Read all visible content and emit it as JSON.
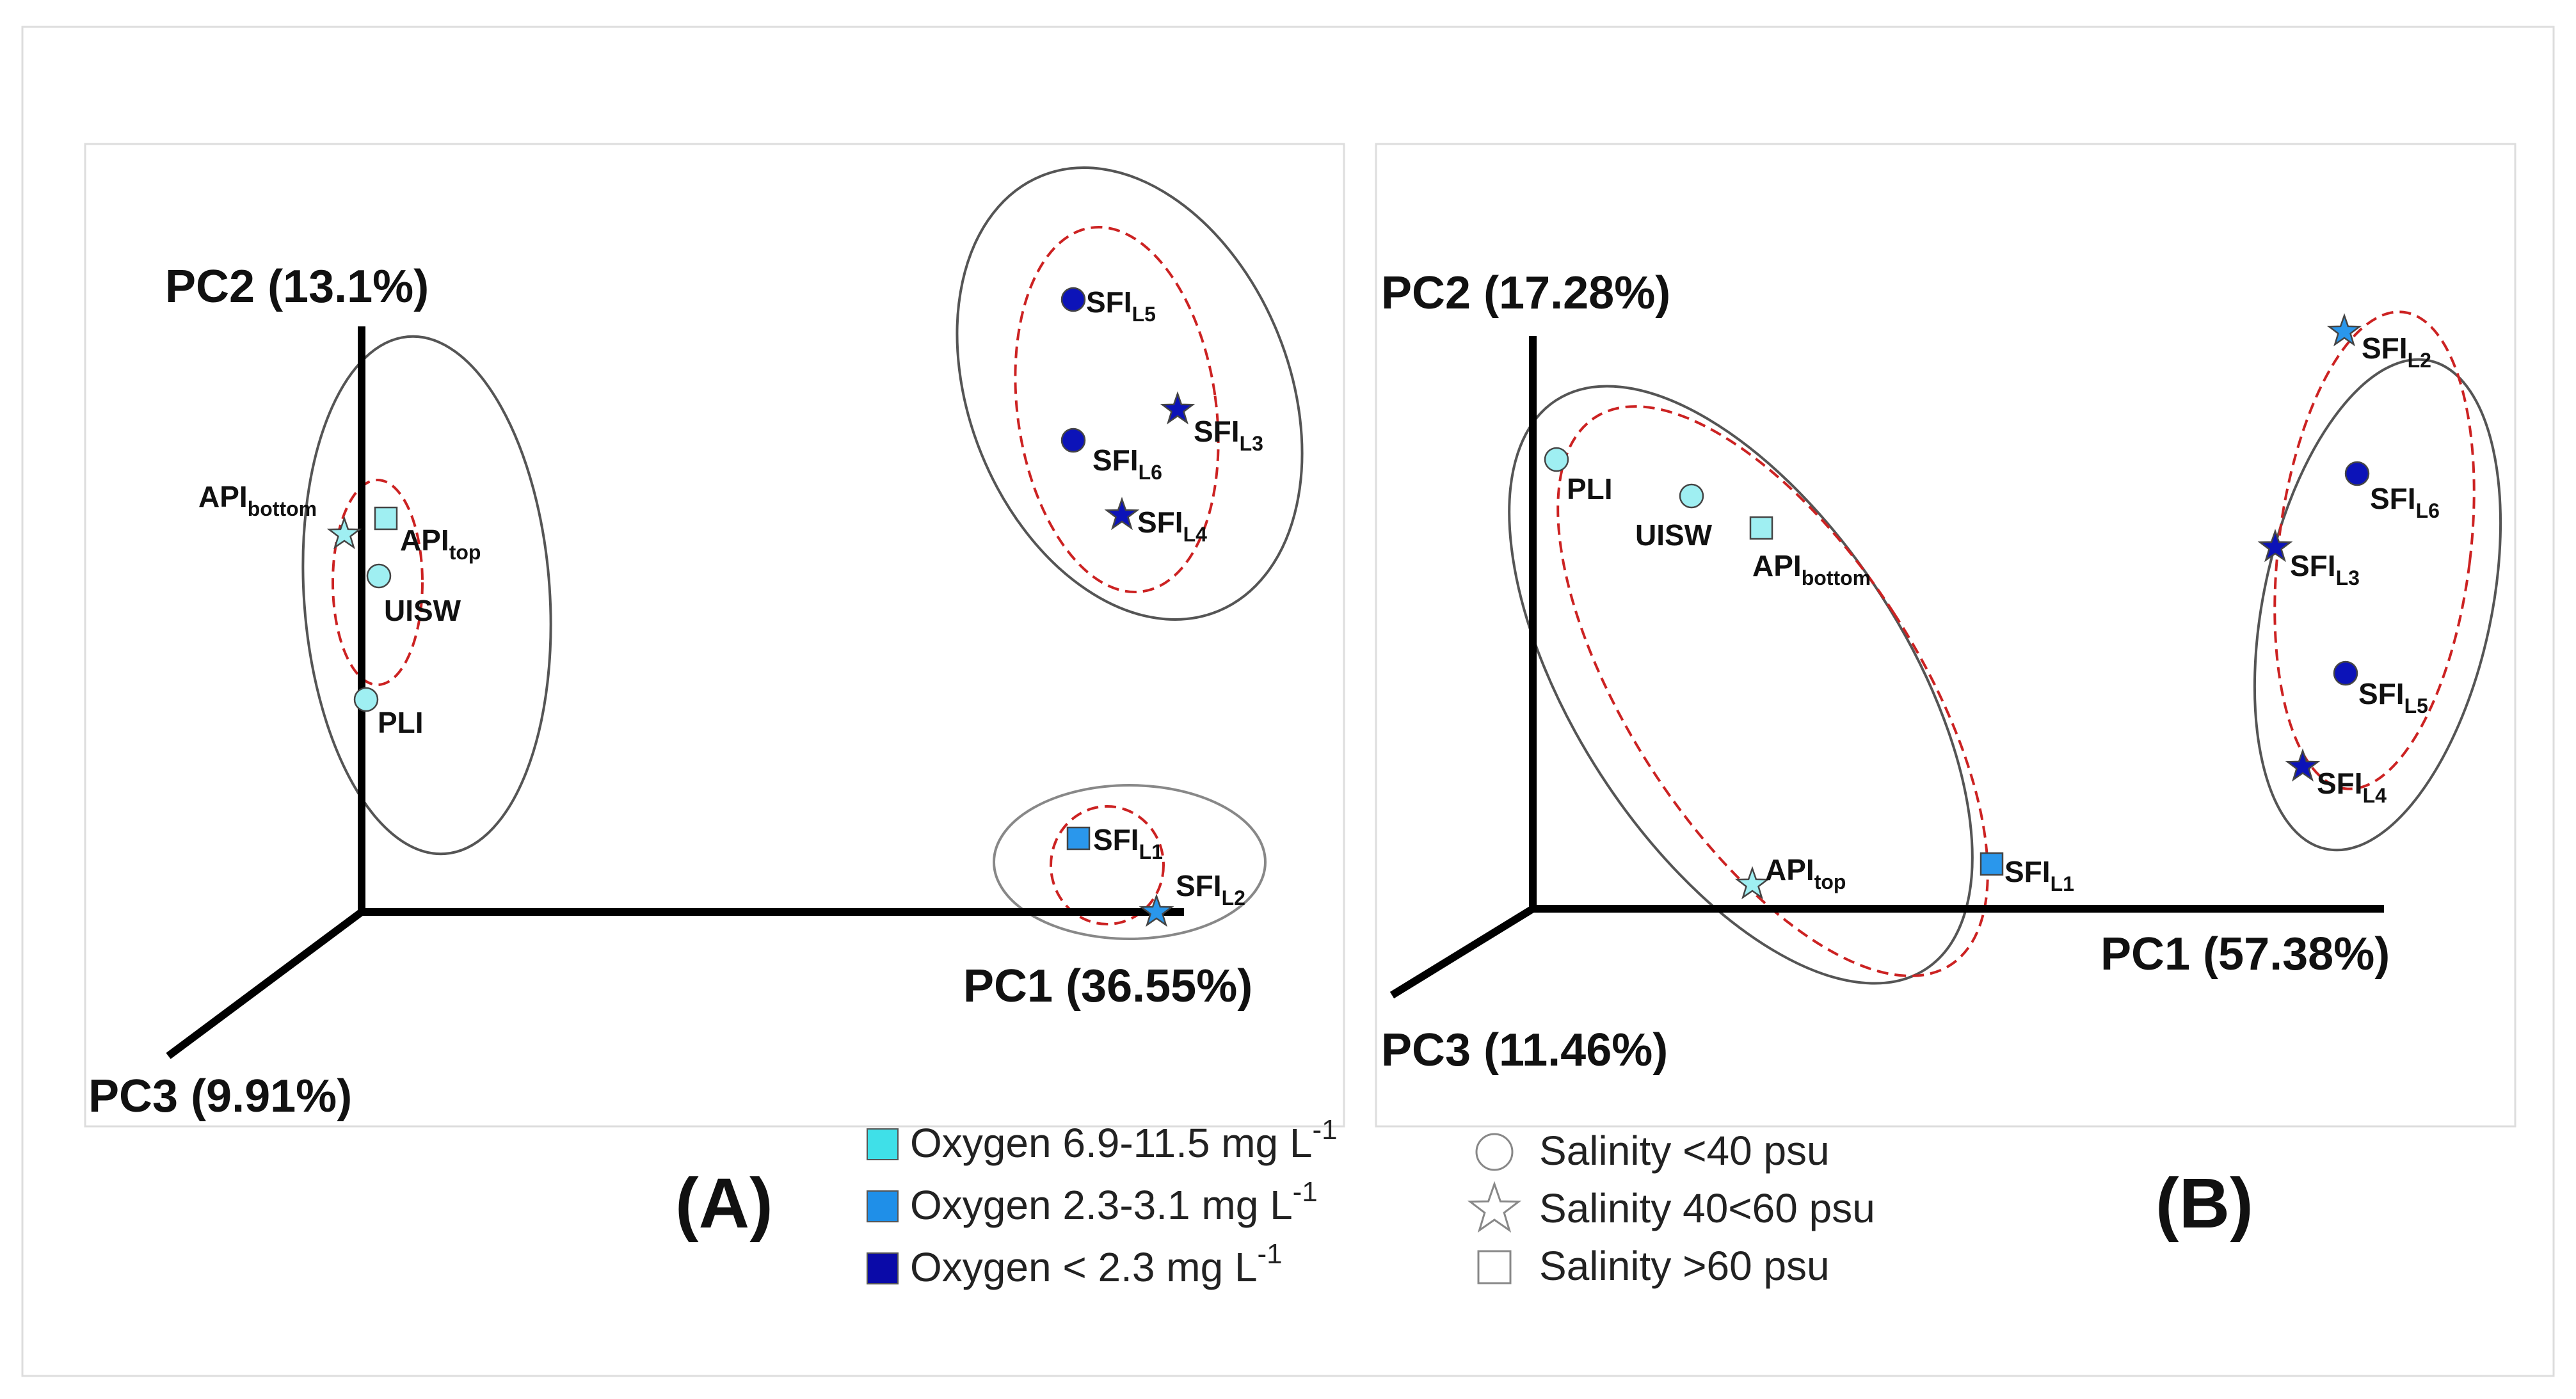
{
  "chart_data": [
    {
      "type": "scatter",
      "panel": "(A)",
      "axes": {
        "x": "PC1 (36.55%)",
        "y": "PC2 (13.1%)",
        "z": "PC3 (9.91%)"
      },
      "points": [
        {
          "id": "a-api-bottom",
          "label": "API",
          "sub": "bottom",
          "oxygen": "high",
          "salinity": "mid",
          "shape": "star"
        },
        {
          "id": "a-api-top",
          "label": "API",
          "sub": "top",
          "oxygen": "high",
          "salinity": "high",
          "shape": "square"
        },
        {
          "id": "a-uisw",
          "label": "UISW",
          "sub": "",
          "oxygen": "high",
          "salinity": "low",
          "shape": "circle"
        },
        {
          "id": "a-pli",
          "label": "PLI",
          "sub": "",
          "oxygen": "high",
          "salinity": "low",
          "shape": "circle"
        },
        {
          "id": "a-sfi-l5",
          "label": "SFI",
          "sub": "L5",
          "oxygen": "low",
          "salinity": "low",
          "shape": "circle"
        },
        {
          "id": "a-sfi-l3",
          "label": "SFI",
          "sub": "L3",
          "oxygen": "low",
          "salinity": "mid",
          "shape": "star"
        },
        {
          "id": "a-sfi-l6",
          "label": "SFI",
          "sub": "L6",
          "oxygen": "low",
          "salinity": "low",
          "shape": "circle"
        },
        {
          "id": "a-sfi-l4",
          "label": "SFI",
          "sub": "L4",
          "oxygen": "low",
          "salinity": "mid",
          "shape": "star"
        },
        {
          "id": "a-sfi-l1",
          "label": "SFI",
          "sub": "L1",
          "oxygen": "mid",
          "salinity": "high",
          "shape": "square"
        },
        {
          "id": "a-sfi-l2",
          "label": "SFI",
          "sub": "L2",
          "oxygen": "mid",
          "salinity": "mid",
          "shape": "star"
        }
      ]
    },
    {
      "type": "scatter",
      "panel": "(B)",
      "axes": {
        "x": "PC1 (57.38%)",
        "y": "PC2 (17.28%)",
        "z": "PC3 (11.46%)"
      },
      "points": [
        {
          "id": "b-pli",
          "label": "PLI",
          "sub": "",
          "oxygen": "high",
          "salinity": "low",
          "shape": "circle"
        },
        {
          "id": "b-uisw",
          "label": "UISW",
          "sub": "",
          "oxygen": "high",
          "salinity": "low",
          "shape": "circle"
        },
        {
          "id": "b-api-bottom",
          "label": "API",
          "sub": "bottom",
          "oxygen": "high",
          "salinity": "high",
          "shape": "square"
        },
        {
          "id": "b-api-top",
          "label": "API",
          "sub": "top",
          "oxygen": "high",
          "salinity": "mid",
          "shape": "star"
        },
        {
          "id": "b-sfi-l1",
          "label": "SFI",
          "sub": "L1",
          "oxygen": "mid",
          "salinity": "high",
          "shape": "square"
        },
        {
          "id": "b-sfi-l2",
          "label": "SFI",
          "sub": "L2",
          "oxygen": "mid",
          "salinity": "mid",
          "shape": "star"
        },
        {
          "id": "b-sfi-l6",
          "label": "SFI",
          "sub": "L6",
          "oxygen": "low",
          "salinity": "low",
          "shape": "circle"
        },
        {
          "id": "b-sfi-l3",
          "label": "SFI",
          "sub": "L3",
          "oxygen": "low",
          "salinity": "mid",
          "shape": "star"
        },
        {
          "id": "b-sfi-l5",
          "label": "SFI",
          "sub": "L5",
          "oxygen": "low",
          "salinity": "low",
          "shape": "circle"
        },
        {
          "id": "b-sfi-l4",
          "label": "SFI",
          "sub": "L4",
          "oxygen": "low",
          "salinity": "mid",
          "shape": "star"
        }
      ]
    }
  ],
  "legend": {
    "oxygen": [
      {
        "key": "high",
        "text": "Oxygen 6.9-11.5 mg L",
        "sup": "-1",
        "color": "#3fe0e8"
      },
      {
        "key": "mid",
        "text": "Oxygen 2.3-3.1 mg L",
        "sup": "-1",
        "color": "#1f8fe8"
      },
      {
        "key": "low",
        "text": "Oxygen < 2.3 mg L",
        "sup": "-1",
        "color": "#0a0aa8"
      }
    ],
    "salinity": [
      {
        "key": "low",
        "text": "Salinity <40 psu",
        "shape": "circle"
      },
      {
        "key": "mid",
        "text": "Salinity 40<60 psu",
        "shape": "star"
      },
      {
        "key": "high",
        "text": "Salinity >60 psu",
        "shape": "square"
      }
    ]
  },
  "colors": {
    "high": "#9feff2",
    "mid": "#2a97ec",
    "low": "#0c13b8",
    "ellipse_outer": "#555555",
    "ellipse_inner": "#cc2222"
  }
}
